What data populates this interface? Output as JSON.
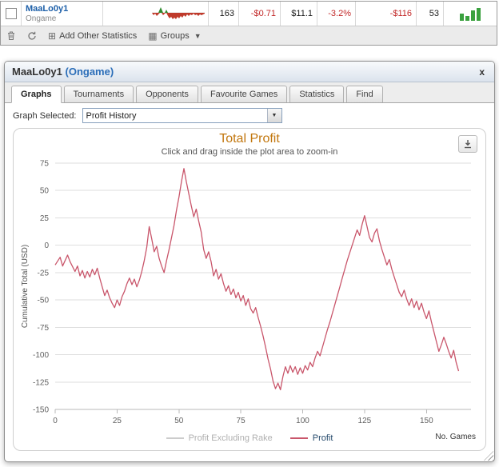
{
  "stats_row": {
    "player_name": "MaaLo0y1",
    "site": "Ongame",
    "values": [
      "163",
      "-$0.71",
      "$11.1",
      "-3.2%",
      "-$116",
      "53"
    ],
    "value_colors": [
      "#1a1a1a",
      "#c22727",
      "#1a1a1a",
      "#c22727",
      "#c22727",
      "#1a1a1a"
    ],
    "mini_bars": [
      9,
      6,
      13,
      16
    ],
    "mini_bar_color": "#3aa13f",
    "spark_colors": {
      "up": "#2e8b2e",
      "down": "#bf3a2b"
    }
  },
  "toolbar": {
    "add_label": "Add Other Statistics",
    "groups_label": "Groups"
  },
  "dialog": {
    "title_name": "MaaLo0y1",
    "title_site": "(Ongame)",
    "close_label": "x",
    "tabs": [
      {
        "label": "Graphs",
        "active": true
      },
      {
        "label": "Tournaments",
        "active": false
      },
      {
        "label": "Opponents",
        "active": false
      },
      {
        "label": "Favourite Games",
        "active": false
      },
      {
        "label": "Statistics",
        "active": false
      },
      {
        "label": "Find",
        "active": false
      }
    ],
    "graph_selected_label": "Graph Selected:",
    "graph_selected_value": "Profit History"
  },
  "chart_data": {
    "type": "line",
    "title": "Total Profit",
    "title_color": "#c2770e",
    "subtitle": "Click and drag inside the plot area to zoom-in",
    "ylabel": "Cumulative Total (USD)",
    "xlabel": "No. Games",
    "ylim": [
      -150,
      75
    ],
    "xlim": [
      0,
      168
    ],
    "yticks": [
      75,
      50,
      25,
      0,
      -25,
      -50,
      -75,
      -100,
      -125,
      -150
    ],
    "xticks": [
      0,
      25,
      50,
      75,
      100,
      125,
      150
    ],
    "grid": true,
    "legend_position": "bottom",
    "series": [
      {
        "name": "Profit Excluding Rake",
        "color": "#cccccc",
        "visible": false,
        "points": []
      },
      {
        "name": "Profit",
        "color": "#c9566b",
        "visible": true,
        "points": [
          [
            0,
            -18
          ],
          [
            2,
            -11
          ],
          [
            3,
            -19
          ],
          [
            5,
            -9
          ],
          [
            6,
            -15
          ],
          [
            8,
            -24
          ],
          [
            9,
            -19
          ],
          [
            10,
            -28
          ],
          [
            11,
            -23
          ],
          [
            12,
            -30
          ],
          [
            13,
            -24
          ],
          [
            14,
            -29
          ],
          [
            15,
            -22
          ],
          [
            16,
            -27
          ],
          [
            17,
            -21
          ],
          [
            18,
            -30
          ],
          [
            19,
            -38
          ],
          [
            20,
            -46
          ],
          [
            21,
            -41
          ],
          [
            22,
            -48
          ],
          [
            23,
            -53
          ],
          [
            24,
            -57
          ],
          [
            25,
            -50
          ],
          [
            26,
            -55
          ],
          [
            27,
            -47
          ],
          [
            28,
            -42
          ],
          [
            29,
            -35
          ],
          [
            30,
            -30
          ],
          [
            31,
            -36
          ],
          [
            32,
            -31
          ],
          [
            33,
            -38
          ],
          [
            34,
            -32
          ],
          [
            35,
            -24
          ],
          [
            36,
            -14
          ],
          [
            37,
            -2
          ],
          [
            38,
            17
          ],
          [
            39,
            6
          ],
          [
            40,
            -6
          ],
          [
            41,
            -1
          ],
          [
            42,
            -12
          ],
          [
            43,
            -19
          ],
          [
            44,
            -25
          ],
          [
            45,
            -14
          ],
          [
            46,
            -4
          ],
          [
            47,
            7
          ],
          [
            48,
            18
          ],
          [
            49,
            32
          ],
          [
            50,
            44
          ],
          [
            51,
            58
          ],
          [
            52,
            70
          ],
          [
            53,
            58
          ],
          [
            54,
            47
          ],
          [
            55,
            36
          ],
          [
            56,
            26
          ],
          [
            57,
            33
          ],
          [
            58,
            22
          ],
          [
            59,
            12
          ],
          [
            60,
            -4
          ],
          [
            61,
            -12
          ],
          [
            62,
            -6
          ],
          [
            63,
            -15
          ],
          [
            64,
            -28
          ],
          [
            65,
            -22
          ],
          [
            66,
            -31
          ],
          [
            67,
            -26
          ],
          [
            68,
            -35
          ],
          [
            69,
            -42
          ],
          [
            70,
            -37
          ],
          [
            71,
            -45
          ],
          [
            72,
            -40
          ],
          [
            73,
            -48
          ],
          [
            74,
            -43
          ],
          [
            75,
            -51
          ],
          [
            76,
            -46
          ],
          [
            77,
            -55
          ],
          [
            78,
            -49
          ],
          [
            79,
            -58
          ],
          [
            80,
            -62
          ],
          [
            81,
            -57
          ],
          [
            82,
            -66
          ],
          [
            83,
            -74
          ],
          [
            84,
            -83
          ],
          [
            85,
            -93
          ],
          [
            86,
            -104
          ],
          [
            87,
            -113
          ],
          [
            88,
            -124
          ],
          [
            89,
            -131
          ],
          [
            90,
            -126
          ],
          [
            91,
            -132
          ],
          [
            92,
            -120
          ],
          [
            93,
            -111
          ],
          [
            94,
            -117
          ],
          [
            95,
            -110
          ],
          [
            96,
            -116
          ],
          [
            97,
            -111
          ],
          [
            98,
            -118
          ],
          [
            99,
            -112
          ],
          [
            100,
            -117
          ],
          [
            101,
            -110
          ],
          [
            102,
            -114
          ],
          [
            103,
            -107
          ],
          [
            104,
            -111
          ],
          [
            105,
            -103
          ],
          [
            106,
            -97
          ],
          [
            107,
            -101
          ],
          [
            108,
            -93
          ],
          [
            109,
            -85
          ],
          [
            110,
            -77
          ],
          [
            111,
            -70
          ],
          [
            112,
            -62
          ],
          [
            113,
            -54
          ],
          [
            114,
            -46
          ],
          [
            115,
            -38
          ],
          [
            116,
            -30
          ],
          [
            117,
            -22
          ],
          [
            118,
            -14
          ],
          [
            119,
            -7
          ],
          [
            120,
            0
          ],
          [
            121,
            7
          ],
          [
            122,
            14
          ],
          [
            123,
            9
          ],
          [
            124,
            19
          ],
          [
            125,
            27
          ],
          [
            126,
            17
          ],
          [
            127,
            7
          ],
          [
            128,
            3
          ],
          [
            129,
            11
          ],
          [
            130,
            15
          ],
          [
            131,
            4
          ],
          [
            132,
            -4
          ],
          [
            133,
            -11
          ],
          [
            134,
            -18
          ],
          [
            135,
            -13
          ],
          [
            136,
            -22
          ],
          [
            137,
            -29
          ],
          [
            138,
            -36
          ],
          [
            139,
            -43
          ],
          [
            140,
            -47
          ],
          [
            141,
            -41
          ],
          [
            142,
            -49
          ],
          [
            143,
            -55
          ],
          [
            144,
            -49
          ],
          [
            145,
            -57
          ],
          [
            146,
            -51
          ],
          [
            147,
            -59
          ],
          [
            148,
            -53
          ],
          [
            149,
            -61
          ],
          [
            150,
            -67
          ],
          [
            151,
            -60
          ],
          [
            152,
            -70
          ],
          [
            153,
            -79
          ],
          [
            154,
            -88
          ],
          [
            155,
            -97
          ],
          [
            156,
            -91
          ],
          [
            157,
            -84
          ],
          [
            158,
            -90
          ],
          [
            159,
            -97
          ],
          [
            160,
            -103
          ],
          [
            161,
            -96
          ],
          [
            162,
            -107
          ],
          [
            163,
            -115
          ]
        ]
      }
    ]
  }
}
